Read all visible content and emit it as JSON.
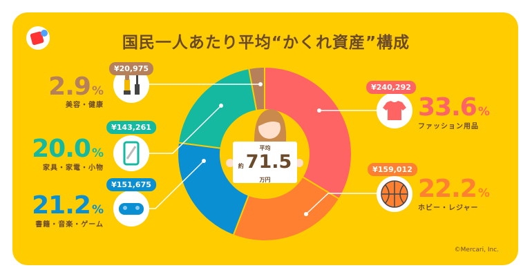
{
  "title": "国民一人あたり平均“かくれ資産”構成",
  "logo_icon": "mercari-logo-icon",
  "copyright": "©Mercari, Inc.",
  "center": {
    "label_top": "平均",
    "prefix": "約",
    "value": "71.5",
    "unit": "万円"
  },
  "chart_data": {
    "type": "pie",
    "donut": true,
    "start": "top",
    "direction": "clockwise",
    "categories": [
      "ファッション用品",
      "ホビー・レジャー",
      "書籍・音楽・ゲーム",
      "家具・家電・小物",
      "美容・健康"
    ],
    "values": [
      33.6,
      22.2,
      21.2,
      20.0,
      2.9
    ],
    "amounts": [
      "¥240,292",
      "¥159,012",
      "¥151,675",
      "¥143,261",
      "¥20,975"
    ],
    "colors": [
      "#FF6464",
      "#FF8030",
      "#0A8FD2",
      "#14B9A0",
      "#B5805A"
    ],
    "icons": [
      "tshirt-icon",
      "basketball-icon",
      "game-controller-icon",
      "smartphone-icon",
      "cosmetics-icon"
    ],
    "pct_unit": "%"
  },
  "colors": {
    "background": "#FFCC00",
    "text": "#6B4A2B"
  }
}
